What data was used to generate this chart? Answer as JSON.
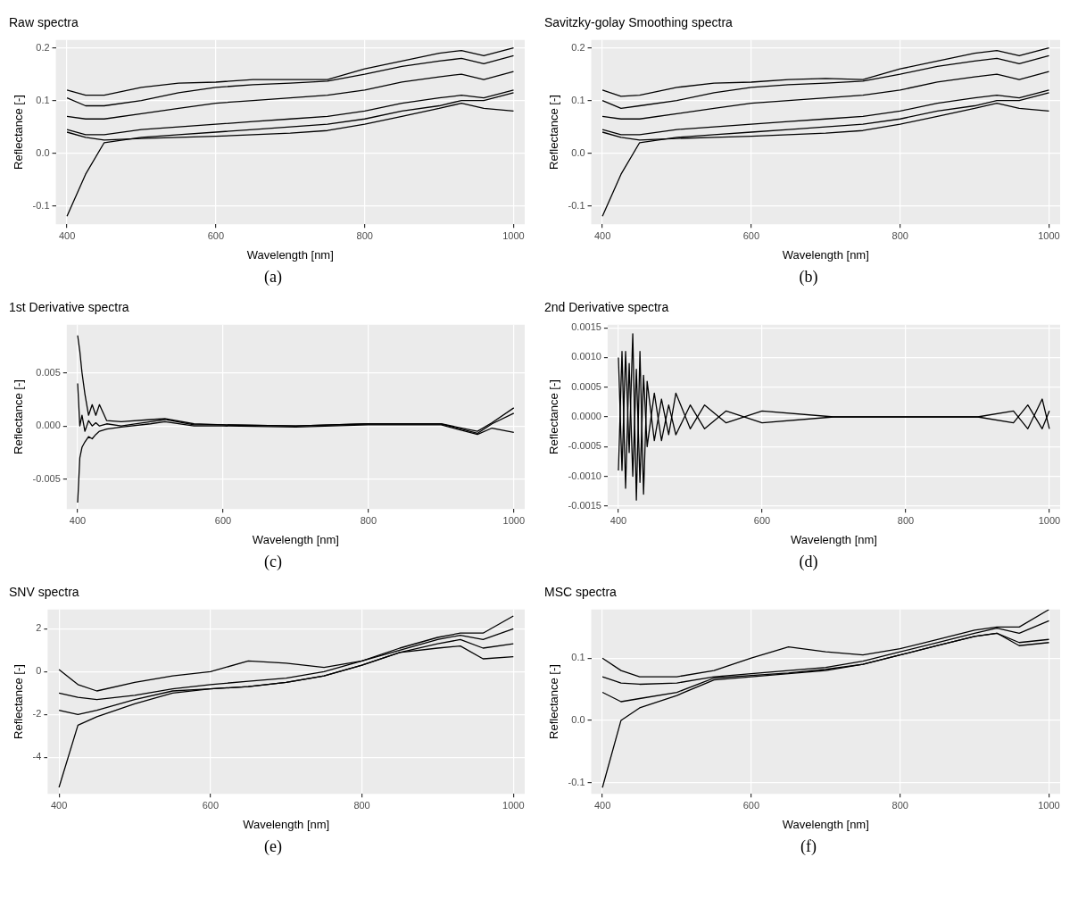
{
  "chart_data": [
    {
      "type": "line",
      "title": "Raw spectra",
      "xlabel": "Wavelength [nm]",
      "ylabel": "Reflectance [-]",
      "annotations": [
        "(a)"
      ],
      "grid": true,
      "legend": false,
      "xlim": [
        385,
        1015
      ],
      "xticks": [
        400,
        600,
        800,
        1000
      ],
      "ylim": [
        -0.135,
        0.215
      ],
      "yticks": [
        -0.1,
        {
          "value": 0,
          "label": "0.0"
        },
        0.1,
        0.2
      ],
      "x": [
        400,
        425,
        450,
        500,
        550,
        600,
        650,
        700,
        750,
        800,
        850,
        900,
        930,
        960,
        1000
      ],
      "series": [
        {
          "color": "#000000",
          "values": [
            0.12,
            0.11,
            0.11,
            0.125,
            0.133,
            0.135,
            0.14,
            0.14,
            0.14,
            0.16,
            0.175,
            0.19,
            0.195,
            0.185,
            0.2
          ]
        },
        {
          "color": "#000000",
          "values": [
            0.105,
            0.09,
            0.09,
            0.1,
            0.115,
            0.125,
            0.13,
            0.133,
            0.137,
            0.15,
            0.165,
            0.175,
            0.18,
            0.17,
            0.185
          ]
        },
        {
          "color": "#000000",
          "values": [
            0.07,
            0.065,
            0.065,
            0.075,
            0.085,
            0.095,
            0.1,
            0.105,
            0.11,
            0.12,
            0.135,
            0.145,
            0.15,
            0.14,
            0.155
          ]
        },
        {
          "color": "#000000",
          "values": [
            0.045,
            0.035,
            0.035,
            0.045,
            0.05,
            0.055,
            0.06,
            0.065,
            0.07,
            0.08,
            0.095,
            0.105,
            0.11,
            0.105,
            0.12
          ]
        },
        {
          "color": "#000000",
          "values": [
            0.04,
            0.03,
            0.025,
            0.028,
            0.03,
            0.032,
            0.035,
            0.038,
            0.043,
            0.055,
            0.07,
            0.085,
            0.095,
            0.085,
            0.08
          ]
        },
        {
          "color": "#000000",
          "values": [
            -0.12,
            -0.04,
            0.02,
            0.03,
            0.035,
            0.04,
            0.045,
            0.05,
            0.055,
            0.065,
            0.08,
            0.09,
            0.1,
            0.1,
            0.115
          ]
        }
      ]
    },
    {
      "type": "line",
      "title": "Savitzky-golay Smoothing spectra",
      "xlabel": "Wavelength [nm]",
      "ylabel": "Reflectance [-]",
      "annotations": [
        "(b)"
      ],
      "grid": true,
      "legend": false,
      "xlim": [
        385,
        1015
      ],
      "xticks": [
        400,
        600,
        800,
        1000
      ],
      "ylim": [
        -0.135,
        0.215
      ],
      "yticks": [
        -0.1,
        {
          "value": 0,
          "label": "0.0"
        },
        0.1,
        0.2
      ],
      "x": [
        400,
        425,
        450,
        500,
        550,
        600,
        650,
        700,
        750,
        800,
        850,
        900,
        930,
        960,
        1000
      ],
      "series": [
        {
          "color": "#000000",
          "values": [
            0.12,
            0.108,
            0.11,
            0.125,
            0.133,
            0.135,
            0.14,
            0.142,
            0.14,
            0.16,
            0.175,
            0.19,
            0.195,
            0.185,
            0.2
          ]
        },
        {
          "color": "#000000",
          "values": [
            0.1,
            0.085,
            0.09,
            0.1,
            0.115,
            0.125,
            0.13,
            0.133,
            0.137,
            0.15,
            0.165,
            0.175,
            0.18,
            0.17,
            0.185
          ]
        },
        {
          "color": "#000000",
          "values": [
            0.07,
            0.065,
            0.065,
            0.075,
            0.085,
            0.095,
            0.1,
            0.105,
            0.11,
            0.12,
            0.135,
            0.145,
            0.15,
            0.14,
            0.155
          ]
        },
        {
          "color": "#000000",
          "values": [
            0.045,
            0.035,
            0.035,
            0.045,
            0.05,
            0.055,
            0.06,
            0.065,
            0.07,
            0.08,
            0.095,
            0.105,
            0.11,
            0.105,
            0.12
          ]
        },
        {
          "color": "#000000",
          "values": [
            0.04,
            0.03,
            0.025,
            0.028,
            0.03,
            0.032,
            0.035,
            0.038,
            0.043,
            0.055,
            0.07,
            0.085,
            0.095,
            0.085,
            0.08
          ]
        },
        {
          "color": "#000000",
          "values": [
            -0.12,
            -0.04,
            0.02,
            0.03,
            0.035,
            0.04,
            0.045,
            0.05,
            0.055,
            0.065,
            0.08,
            0.09,
            0.1,
            0.1,
            0.115
          ]
        }
      ]
    },
    {
      "type": "line",
      "title": "1st Derivative spectra",
      "xlabel": "Wavelength [nm]",
      "ylabel": "Reflectance [-]",
      "annotations": [
        "(c)"
      ],
      "grid": true,
      "legend": false,
      "xlim": [
        385,
        1015
      ],
      "xticks": [
        400,
        600,
        800,
        1000
      ],
      "ylim": [
        -0.0078,
        0.0095
      ],
      "yticks": [
        -0.005,
        {
          "value": 0,
          "label": "0.000"
        },
        0.005
      ],
      "x": [
        400,
        403,
        406,
        410,
        415,
        420,
        425,
        430,
        440,
        460,
        500,
        520,
        560,
        600,
        700,
        800,
        900,
        950,
        970,
        1000
      ],
      "series": [
        {
          "color": "#000000",
          "values": [
            0.0085,
            0.007,
            0.005,
            0.003,
            0.001,
            0.002,
            0.001,
            0.002,
            0.0005,
            0.0004,
            0.0006,
            0.0007,
            0.0002,
            0.0001,
            0.0,
            0.0002,
            0.0002,
            -0.0007,
            0.0002,
            0.0012
          ]
        },
        {
          "color": "#000000",
          "values": [
            -0.0072,
            -0.003,
            -0.002,
            -0.0015,
            -0.001,
            -0.0012,
            -0.0008,
            -0.0005,
            -0.0003,
            -0.0001,
            0.0002,
            0.0004,
            0.0,
            0.0,
            -0.0001,
            0.0001,
            0.0001,
            -0.0008,
            -0.0002,
            -0.0006
          ]
        },
        {
          "color": "#000000",
          "values": [
            0.004,
            0.0,
            0.001,
            -0.0005,
            0.0005,
            0.0,
            0.0003,
            0.0,
            0.0002,
            0.0,
            0.0004,
            0.0006,
            0.0001,
            0.0001,
            0.0,
            0.0002,
            0.0002,
            -0.0005,
            0.0003,
            0.0017
          ]
        }
      ]
    },
    {
      "type": "line",
      "title": "2nd Derivative spectra",
      "xlabel": "Wavelength [nm]",
      "ylabel": "Reflectance [-]",
      "annotations": [
        "(d)"
      ],
      "grid": true,
      "legend": false,
      "xlim": [
        385,
        1015
      ],
      "xticks": [
        400,
        600,
        800,
        1000
      ],
      "ylim": [
        -0.00155,
        0.00155
      ],
      "yticks": [
        -0.0015,
        {
          "value": -0.001,
          "label": "-0.0010"
        },
        -0.0005,
        {
          "value": 0,
          "label": "0.0000"
        },
        0.0005,
        {
          "value": 0.001,
          "label": "0.0010"
        },
        0.0015
      ],
      "x": [
        400,
        405,
        410,
        415,
        420,
        425,
        430,
        435,
        440,
        450,
        460,
        470,
        480,
        500,
        520,
        550,
        600,
        700,
        800,
        900,
        950,
        970,
        990,
        1000
      ],
      "series": [
        {
          "color": "#000000",
          "values": [
            0.001,
            -0.0009,
            0.0011,
            -0.0006,
            0.0014,
            -0.0014,
            0.0011,
            -0.0013,
            0.0006,
            -0.0004,
            0.0003,
            -0.0003,
            0.0004,
            -0.0002,
            0.0002,
            -0.0001,
            0.0001,
            0,
            0,
            0,
            0.0001,
            -0.0002,
            0.0003,
            -0.0002
          ]
        },
        {
          "color": "#000000",
          "values": [
            -0.0009,
            0.0011,
            -0.0012,
            0.0009,
            -0.001,
            0.0008,
            -0.0011,
            0.0007,
            -0.0005,
            0.0004,
            -0.0004,
            0.0002,
            -0.0003,
            0.0002,
            -0.0002,
            0.0001,
            -0.0001,
            0,
            0,
            0,
            -0.0001,
            0.0002,
            -0.0002,
            0.0001
          ]
        }
      ]
    },
    {
      "type": "line",
      "title": "SNV spectra",
      "xlabel": "Wavelength [nm]",
      "ylabel": "Reflectance [-]",
      "annotations": [
        "(e)"
      ],
      "grid": true,
      "legend": false,
      "xlim": [
        385,
        1015
      ],
      "xticks": [
        400,
        600,
        800,
        1000
      ],
      "ylim": [
        -5.7,
        2.9
      ],
      "yticks": [
        -4,
        -2,
        0,
        2
      ],
      "x": [
        400,
        425,
        450,
        500,
        550,
        600,
        650,
        700,
        750,
        800,
        850,
        900,
        930,
        960,
        1000
      ],
      "series": [
        {
          "color": "#000000",
          "values": [
            0.1,
            -0.6,
            -0.9,
            -0.5,
            -0.2,
            0.0,
            0.5,
            0.4,
            0.2,
            0.5,
            1.1,
            1.6,
            1.8,
            1.8,
            2.6
          ]
        },
        {
          "color": "#000000",
          "values": [
            -1.0,
            -1.2,
            -1.3,
            -1.1,
            -0.8,
            -0.6,
            -0.45,
            -0.3,
            0.0,
            0.5,
            1.0,
            1.5,
            1.7,
            1.5,
            2.0
          ]
        },
        {
          "color": "#000000",
          "values": [
            -1.8,
            -2.0,
            -1.8,
            -1.3,
            -0.9,
            -0.8,
            -0.7,
            -0.5,
            -0.2,
            0.3,
            0.9,
            1.1,
            1.2,
            0.6,
            0.7
          ]
        },
        {
          "color": "#000000",
          "values": [
            -5.4,
            -2.5,
            -2.1,
            -1.5,
            -1.0,
            -0.8,
            -0.7,
            -0.5,
            -0.2,
            0.3,
            0.9,
            1.3,
            1.5,
            1.1,
            1.3
          ]
        }
      ]
    },
    {
      "type": "line",
      "title": "MSC spectra",
      "xlabel": "Wavelength [nm]",
      "ylabel": "Reflectance [-]",
      "annotations": [
        "(f)"
      ],
      "grid": true,
      "legend": false,
      "xlim": [
        385,
        1015
      ],
      "xticks": [
        400,
        600,
        800,
        1000
      ],
      "ylim": [
        -0.118,
        0.178
      ],
      "yticks": [
        -0.1,
        {
          "value": 0,
          "label": "0.0"
        },
        0.1
      ],
      "x": [
        400,
        425,
        450,
        500,
        550,
        600,
        650,
        700,
        750,
        800,
        850,
        900,
        930,
        960,
        1000
      ],
      "series": [
        {
          "color": "#000000",
          "values": [
            0.1,
            0.08,
            0.07,
            0.07,
            0.08,
            0.1,
            0.118,
            0.11,
            0.105,
            0.115,
            0.13,
            0.145,
            0.15,
            0.15,
            0.178
          ]
        },
        {
          "color": "#000000",
          "values": [
            0.07,
            0.06,
            0.058,
            0.06,
            0.07,
            0.075,
            0.08,
            0.085,
            0.095,
            0.11,
            0.125,
            0.14,
            0.148,
            0.14,
            0.16
          ]
        },
        {
          "color": "#000000",
          "values": [
            0.045,
            0.03,
            0.035,
            0.045,
            0.068,
            0.072,
            0.076,
            0.082,
            0.09,
            0.105,
            0.12,
            0.135,
            0.14,
            0.12,
            0.125
          ]
        },
        {
          "color": "#000000",
          "values": [
            -0.108,
            0.0,
            0.02,
            0.04,
            0.065,
            0.07,
            0.075,
            0.08,
            0.09,
            0.105,
            0.12,
            0.135,
            0.14,
            0.125,
            0.13
          ]
        }
      ]
    }
  ]
}
